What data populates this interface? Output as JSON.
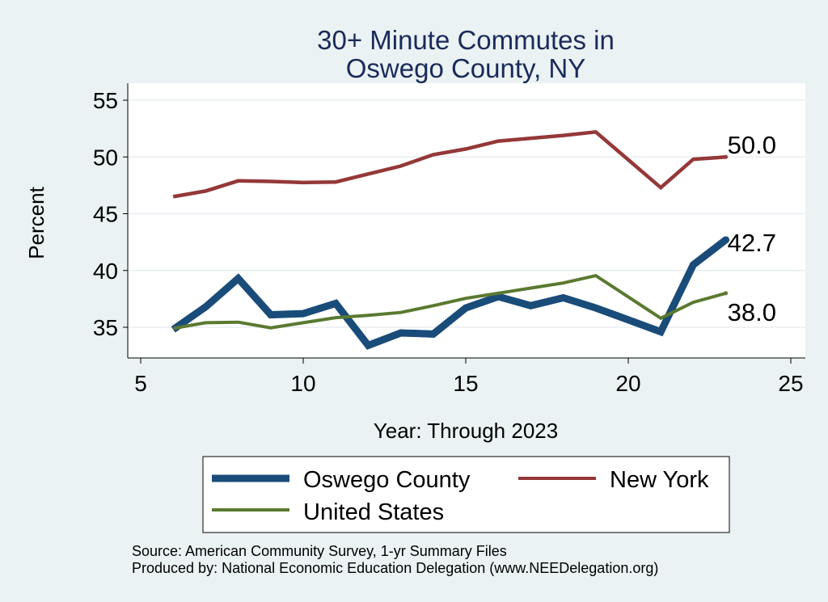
{
  "chart_data": {
    "type": "line",
    "title": [
      "30+ Minute Commutes in",
      "Oswego County, NY"
    ],
    "xlabel": "Year: Through 2023",
    "ylabel": "Percent",
    "xlim": [
      5,
      25
    ],
    "ylim": [
      32.5,
      55
    ],
    "xticks": [
      5,
      10,
      15,
      20,
      25
    ],
    "yticks": [
      35,
      40,
      45,
      50,
      55
    ],
    "grid": true,
    "series": [
      {
        "name": "Oswego County",
        "color": "#1a4c7a",
        "x": [
          6,
          7,
          8,
          9,
          10,
          11,
          12,
          13,
          14,
          15,
          16,
          17,
          18,
          19,
          21,
          22,
          23
        ],
        "values": [
          34.8,
          36.8,
          39.3,
          36.1,
          36.2,
          37.1,
          33.4,
          34.5,
          34.4,
          36.7,
          37.7,
          36.9,
          37.6,
          36.7,
          34.6,
          40.5,
          42.7
        ],
        "end_label": "42.7"
      },
      {
        "name": "New York",
        "color": "#953838",
        "x": [
          6,
          7,
          8,
          9,
          10,
          11,
          12,
          13,
          14,
          15,
          16,
          17,
          18,
          19,
          21,
          22,
          23
        ],
        "values": [
          46.5,
          47.0,
          47.9,
          47.85,
          47.75,
          47.8,
          48.5,
          49.2,
          50.2,
          50.7,
          51.4,
          51.65,
          51.9,
          52.2,
          47.3,
          49.8,
          50.0
        ],
        "end_label": "50.0"
      },
      {
        "name": "United States",
        "color": "#5a7a30",
        "x": [
          6,
          7,
          8,
          9,
          10,
          11,
          12,
          13,
          14,
          15,
          16,
          17,
          18,
          19,
          21,
          22,
          23
        ],
        "values": [
          34.9,
          35.4,
          35.45,
          34.95,
          35.4,
          35.85,
          36.05,
          36.3,
          36.9,
          37.55,
          38.0,
          38.45,
          38.9,
          39.55,
          35.8,
          37.2,
          38.0
        ],
        "end_label": "38.0"
      }
    ],
    "legend": {
      "position": "bottom",
      "entries": [
        "Oswego County",
        "New York",
        "United States"
      ]
    }
  },
  "notes": {
    "source": "Source: American Community Survey, 1-yr Summary Files",
    "produced_by": "Produced by: National Economic Education Delegation (www.NEEDelegation.org)"
  }
}
